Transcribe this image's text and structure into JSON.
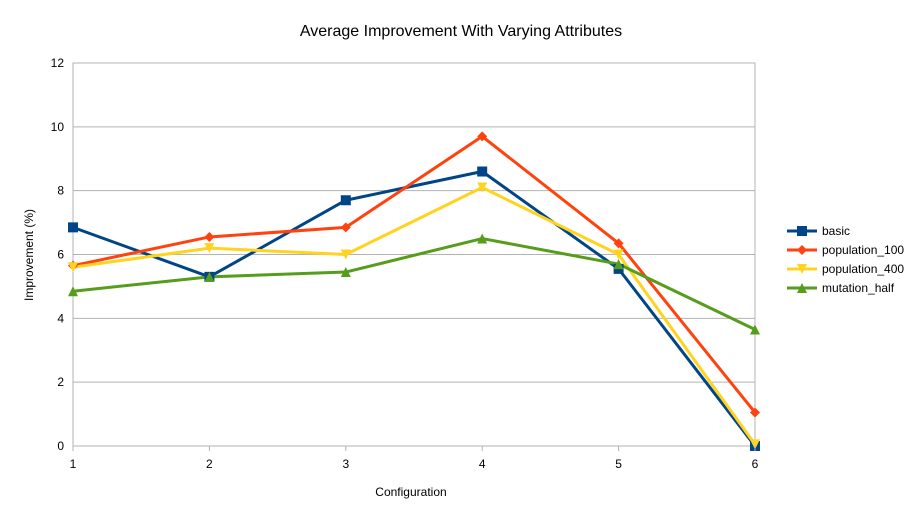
{
  "chart_data": {
    "type": "line",
    "title": "Average Improvement With Varying Attributes",
    "xlabel": "Configuration",
    "ylabel": "Improvement (%)",
    "x": [
      1,
      2,
      3,
      4,
      5,
      6
    ],
    "xticks": [
      "1",
      "2",
      "3",
      "4",
      "5",
      "6"
    ],
    "ylim": [
      0,
      12
    ],
    "yticks": [
      0,
      2,
      4,
      6,
      8,
      10,
      12
    ],
    "grid": true,
    "legend_position": "right",
    "series": [
      {
        "name": "basic",
        "color": "#004586",
        "marker": "square",
        "values": [
          6.85,
          5.3,
          7.7,
          8.6,
          5.55,
          0.0
        ]
      },
      {
        "name": "population_100",
        "color": "#ff420e",
        "marker": "diamond",
        "values": [
          5.65,
          6.55,
          6.85,
          9.7,
          6.35,
          1.05
        ]
      },
      {
        "name": "population_400",
        "color": "#ffd320",
        "marker": "triangle-down",
        "values": [
          5.6,
          6.2,
          6.0,
          8.1,
          6.0,
          0.05
        ]
      },
      {
        "name": "mutation_half",
        "color": "#579d1c",
        "marker": "triangle-up",
        "values": [
          4.85,
          5.3,
          5.45,
          6.5,
          5.7,
          3.65
        ]
      }
    ]
  }
}
